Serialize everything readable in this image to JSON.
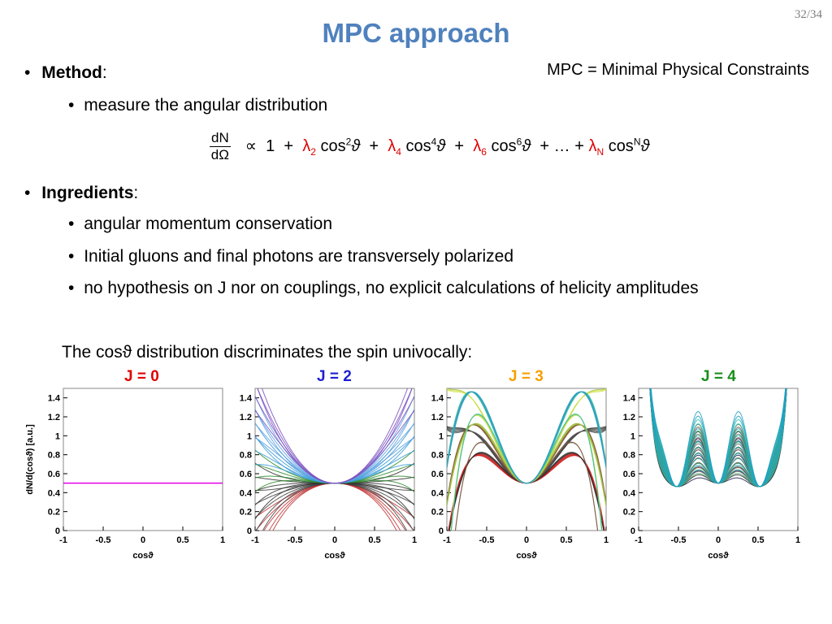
{
  "slide_number": "32/34",
  "title": "MPC approach",
  "method": {
    "label": "Method",
    "colon": ":",
    "sub": "measure the angular distribution"
  },
  "mpc_note": "MPC = Minimal Physical Constraints",
  "formula": {
    "frac_num": "dN",
    "frac_den": "dΩ",
    "prop": "∝",
    "one": "1",
    "plus": "+",
    "l2": "λ",
    "l2_sub": "2",
    "cos2": "cos",
    "cos2_sup": "2",
    "theta": "ϑ",
    "l4": "λ",
    "l4_sub": "4",
    "cos4": "cos",
    "cos4_sup": "4",
    "l6": "λ",
    "l6_sub": "6",
    "cos6": "cos",
    "cos6_sup": "6",
    "ellipsis": "+ … +",
    "lN": "λ",
    "lN_sub": "N",
    "cosN": "cos",
    "cosN_sup": "N"
  },
  "ingredients": {
    "label": "Ingredients",
    "colon": ":",
    "items": [
      "angular momentum conservation",
      "Initial gluons and final photons are transversely polarized",
      "no hypothesis on J nor on couplings, no explicit calculations of helicity amplitudes"
    ]
  },
  "caption": "The cosϑ distribution discriminates the spin univocally:",
  "colors": {
    "title": "#4f81bd",
    "lambda": "#e00000",
    "j0": "#e00000",
    "j2": "#1f1fd0",
    "j3": "#f5a000",
    "j4": "#1a8f1a"
  },
  "chart_data": [
    {
      "type": "line",
      "title": "J = 0",
      "xlabel": "cosϑ",
      "ylabel": "dN/d(cosϑ) [a.u.]",
      "xlim": [
        -1,
        1
      ],
      "ylim": [
        0,
        1.5
      ],
      "x_ticks": [
        "-1",
        "-0.5",
        "0",
        "0.5",
        "1"
      ],
      "y_ticks": [
        "0",
        "0.2",
        "0.4",
        "0.6",
        "0.8",
        "1",
        "1.2",
        "1.4"
      ],
      "series": [
        {
          "x": [
            -1,
            1
          ],
          "y": [
            0.5,
            0.5
          ],
          "color": "#e600e6"
        }
      ]
    },
    {
      "type": "line",
      "title": "J = 2",
      "xlabel": "cosϑ",
      "xlim": [
        -1,
        1
      ],
      "ylim": [
        0,
        1.5
      ],
      "x_ticks": [
        "-1",
        "-0.5",
        "0",
        "0.5",
        "1"
      ],
      "y_ticks": [
        "0",
        "0.2",
        "0.4",
        "0.6",
        "0.8",
        "1",
        "1.2",
        "1.4"
      ],
      "family": "polynomial curves in cos²ϑ through (0, 0.5)"
    },
    {
      "type": "line",
      "title": "J = 3",
      "xlabel": "cosϑ",
      "xlim": [
        -1,
        1
      ],
      "ylim": [
        0,
        1.5
      ],
      "x_ticks": [
        "-1",
        "-0.5",
        "0",
        "0.5",
        "1"
      ],
      "y_ticks": [
        "0",
        "0.2",
        "0.4",
        "0.6",
        "0.8",
        "1",
        "1.2",
        "1.4"
      ],
      "family": "polynomial curves through (0, 0.5)"
    },
    {
      "type": "line",
      "title": "J = 4",
      "xlabel": "cosϑ",
      "xlim": [
        -1,
        1
      ],
      "ylim": [
        0,
        1.5
      ],
      "x_ticks": [
        "-1",
        "-0.5",
        "0",
        "0.5",
        "1"
      ],
      "y_ticks": [
        "0",
        "0.2",
        "0.4",
        "0.6",
        "0.8",
        "1",
        "1.2",
        "1.4"
      ],
      "family": "polynomial curves through (0, 0.5)"
    }
  ]
}
